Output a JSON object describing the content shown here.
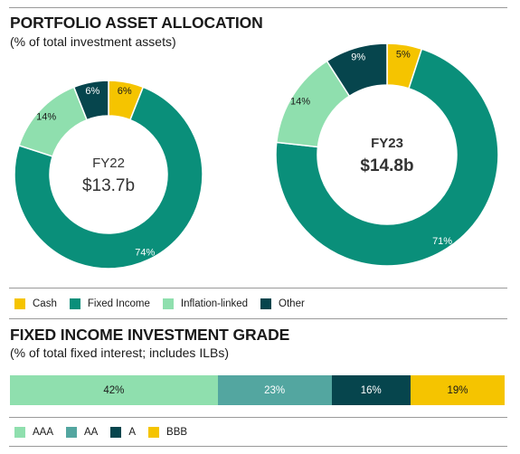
{
  "top_chart": {
    "title": "PORTFOLIO ASSET ALLOCATION",
    "subtitle": "(% of total investment assets)"
  },
  "bottom_chart": {
    "title": "FIXED INCOME INVESTMENT GRADE",
    "subtitle": "(% of total fixed interest; includes ILBs)"
  },
  "chart_data": [
    {
      "type": "pie",
      "variant": "donut",
      "center_label": "FY22",
      "center_value": "$13.7b",
      "categories": [
        "Cash",
        "Fixed Income",
        "Inflation-linked",
        "Other"
      ],
      "values": [
        6,
        74,
        14,
        6
      ],
      "value_labels": [
        "6%",
        "74%",
        "14%",
        "6%"
      ],
      "colors": [
        "#f5c400",
        "#0a8f7a",
        "#8fdfae",
        "#06454d"
      ]
    },
    {
      "type": "pie",
      "variant": "donut",
      "center_label": "FY23",
      "center_value": "$14.8b",
      "categories": [
        "Cash",
        "Fixed Income",
        "Inflation-linked",
        "Other"
      ],
      "values": [
        5,
        71,
        14,
        9
      ],
      "value_labels": [
        "5%",
        "71%",
        "14%",
        "9%"
      ],
      "colors": [
        "#f5c400",
        "#0a8f7a",
        "#8fdfae",
        "#06454d"
      ]
    },
    {
      "type": "bar",
      "variant": "100%-stacked-horizontal",
      "categories": [
        "AAA",
        "AA",
        "A",
        "BBB"
      ],
      "values": [
        42,
        23,
        16,
        19
      ],
      "value_labels": [
        "42%",
        "23%",
        "16%",
        "19%"
      ],
      "colors": [
        "#8fdfae",
        "#53a6a0",
        "#06454d",
        "#f5c400"
      ]
    }
  ],
  "legend_top": [
    {
      "label": "Cash",
      "color": "#f5c400"
    },
    {
      "label": "Fixed Income",
      "color": "#0a8f7a"
    },
    {
      "label": "Inflation-linked",
      "color": "#8fdfae"
    },
    {
      "label": "Other",
      "color": "#06454d"
    }
  ],
  "legend_bottom": [
    {
      "label": "AAA",
      "color": "#8fdfae"
    },
    {
      "label": "AA",
      "color": "#53a6a0"
    },
    {
      "label": "A",
      "color": "#06454d"
    },
    {
      "label": "BBB",
      "color": "#f5c400"
    }
  ]
}
